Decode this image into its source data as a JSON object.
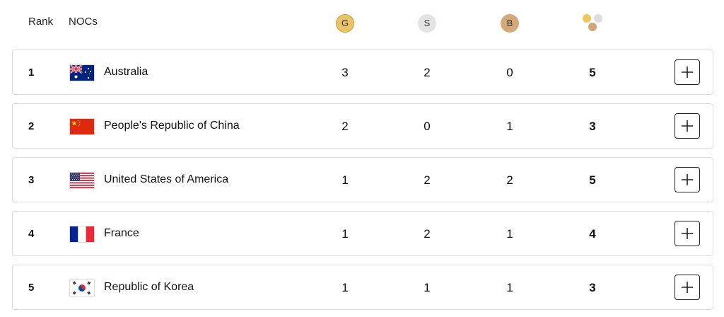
{
  "header": {
    "rank_label": "Rank",
    "nocs_label": "NOCs",
    "gold_label": "G",
    "silver_label": "S",
    "bronze_label": "B",
    "total_icon": "medals-total-icon"
  },
  "colors": {
    "gold": "#e9c46a",
    "silver": "#e3e3e3",
    "bronze": "#d4a97a",
    "row_border": "#dcdcdc"
  },
  "rows": [
    {
      "rank": "1",
      "noc": "Australia",
      "flag": "australia-flag-icon",
      "gold": "3",
      "silver": "2",
      "bronze": "0",
      "total": "5"
    },
    {
      "rank": "2",
      "noc": "People's Republic of China",
      "flag": "china-flag-icon",
      "gold": "2",
      "silver": "0",
      "bronze": "1",
      "total": "3"
    },
    {
      "rank": "3",
      "noc": "United States of America",
      "flag": "usa-flag-icon",
      "gold": "1",
      "silver": "2",
      "bronze": "2",
      "total": "5"
    },
    {
      "rank": "4",
      "noc": "France",
      "flag": "france-flag-icon",
      "gold": "1",
      "silver": "2",
      "bronze": "1",
      "total": "4"
    },
    {
      "rank": "5",
      "noc": "Republic of Korea",
      "flag": "korea-flag-icon",
      "gold": "1",
      "silver": "1",
      "bronze": "1",
      "total": "3"
    }
  ],
  "expand_icon": "plus-icon"
}
